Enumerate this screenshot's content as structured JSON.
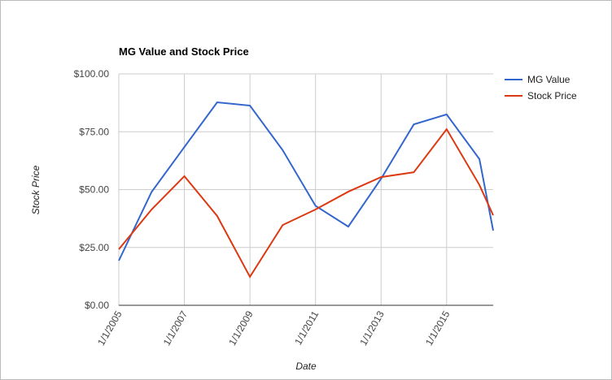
{
  "chart_data": {
    "type": "line",
    "title": "MG Value and Stock Price",
    "x_label": "Date",
    "y_label": "Stock Price",
    "x": [
      2005,
      2006,
      2007,
      2008,
      2009,
      2010,
      2011,
      2012,
      2013,
      2014,
      2015,
      2016,
      2016.42
    ],
    "series": [
      {
        "name": "MG Value",
        "color": "#3366cc",
        "values": [
          19.3,
          49,
          68.4,
          87.7,
          86.3,
          67,
          43,
          34,
          54.7,
          78.2,
          82.5,
          63.2,
          32.3
        ]
      },
      {
        "name": "Stock Price",
        "color": "#dc3912",
        "values": [
          24.2,
          41.4,
          55.8,
          38.6,
          12.3,
          34.7,
          41.4,
          49.1,
          55.4,
          57.5,
          76.1,
          52.0,
          38.9
        ]
      }
    ],
    "xlim": [
      2005,
      2016.42
    ],
    "xticks": [
      {
        "value": 2005,
        "label": "1/1/2005"
      },
      {
        "value": 2007,
        "label": "1/1/2007"
      },
      {
        "value": 2009,
        "label": "1/1/2009"
      },
      {
        "value": 2011,
        "label": "1/1/2011"
      },
      {
        "value": 2013,
        "label": "1/1/2013"
      },
      {
        "value": 2015,
        "label": "1/1/2015"
      }
    ],
    "ylim": [
      0,
      100
    ],
    "yticks": [
      {
        "value": 0,
        "label": "$0.00"
      },
      {
        "value": 25,
        "label": "$25.00"
      },
      {
        "value": 50,
        "label": "$50.00"
      },
      {
        "value": 75,
        "label": "$75.00"
      },
      {
        "value": 100,
        "label": "$100.00"
      }
    ],
    "grid": true,
    "legend": "right"
  }
}
